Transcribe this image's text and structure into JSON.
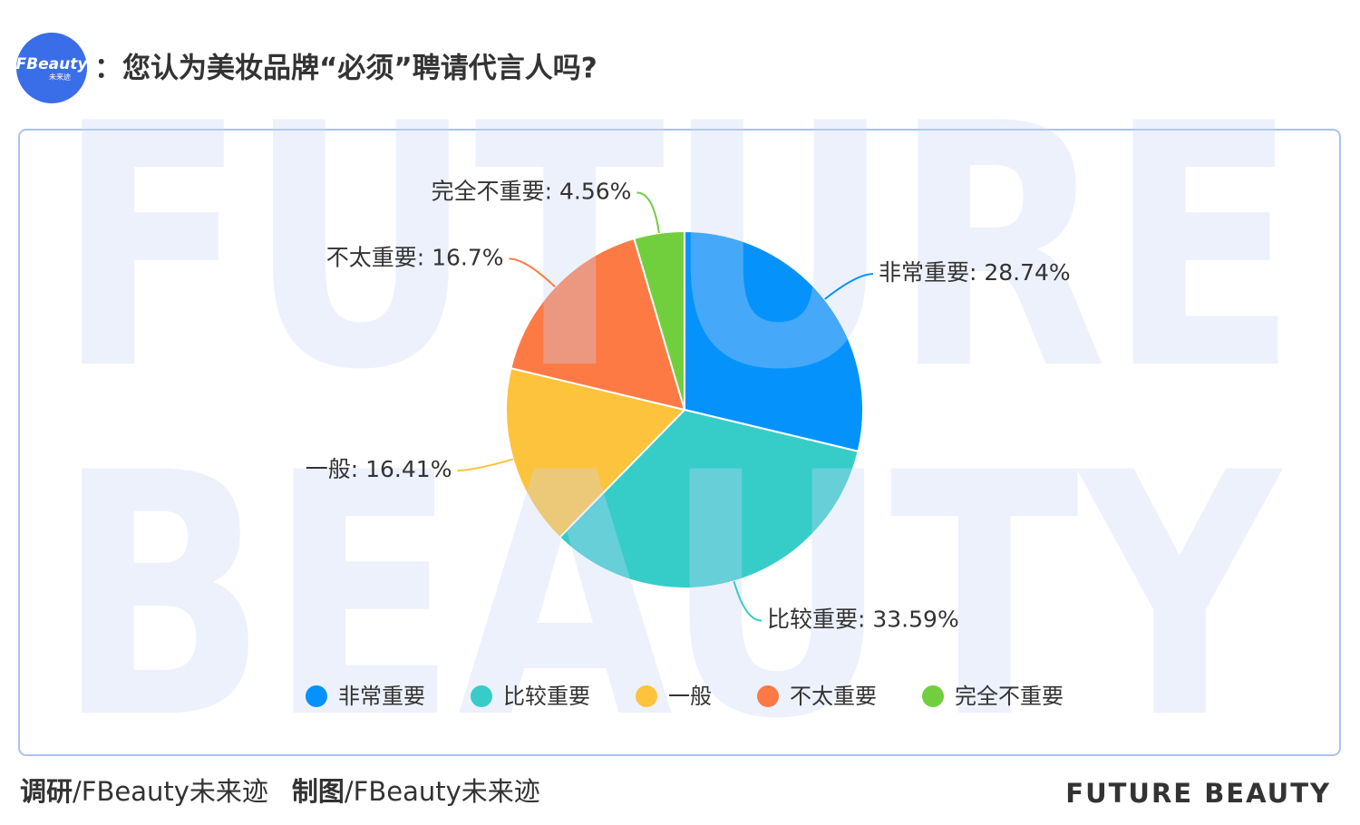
{
  "header": {
    "logo": "FBeauty",
    "logo_sub": "未来迹",
    "title": "：您认为美妆品牌“必须”聘请代言人吗?"
  },
  "watermark": [
    "FUTURE",
    "BEAUTY"
  ],
  "chart_data": {
    "type": "pie",
    "categories": [
      "非常重要",
      "比较重要",
      "一般",
      "不太重要",
      "完全不重要"
    ],
    "values": [
      28.74,
      33.59,
      16.41,
      16.7,
      4.56
    ],
    "value_labels": [
      "非常重要: 28.74%",
      "比较重要: 33.59%",
      "一般: 16.41%",
      "不太重要: 16.7%",
      "完全不重要: 4.56%"
    ],
    "colors": [
      "#0593fb",
      "#36cdc8",
      "#fec33c",
      "#fe7a45",
      "#71cf3d"
    ],
    "legend": "bottom"
  },
  "footer": {
    "survey_label": "调研",
    "survey_source": "/FBeauty未来迹",
    "chart_label": "制图",
    "chart_source": "/FBeauty未来迹",
    "brand": "FUTURE BEAUTY"
  }
}
